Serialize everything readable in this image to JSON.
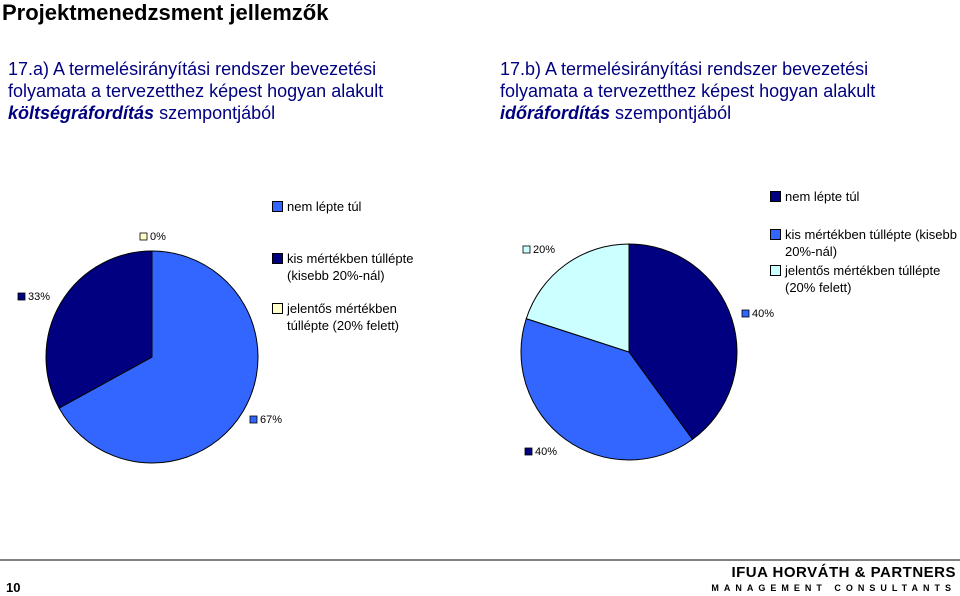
{
  "slide": {
    "title": "Projektmenedzsment jellemzők",
    "page_number": 10,
    "logo": "IFUA HORVÁTH & PARTNERS",
    "logo_subtitle": "MANAGEMENT CONSULTANTS"
  },
  "chart_data": [
    {
      "type": "pie",
      "title": [
        "17.a) A termelésirányítási rendszer bevezetési folyamata a tervezetthez képest hogyan alakult",
        "költségráfordítás",
        "szempontjából"
      ],
      "categories": [
        "nem lépte túl",
        "kis mértékben túllépte (kisebb 20%-nál)",
        "jelentős mértékben túllépte (20% felett)"
      ],
      "values": [
        67,
        33,
        0
      ],
      "value_labels": [
        "67%",
        "33%",
        "0%"
      ],
      "colors": [
        "#3366ff",
        "#000080",
        "#ffffcc"
      ]
    },
    {
      "type": "pie",
      "title": [
        "17.b) A termelésirányítási rendszer bevezetési folyamata a tervezetthez képest hogyan alakult",
        "időráfordítás",
        "szempontjából"
      ],
      "categories": [
        "nem lépte túl",
        "kis mértékben túllépte (kisebb 20%-nál)",
        "jelentős mértékben túllépte (20% felett)"
      ],
      "values": [
        40,
        40,
        20
      ],
      "value_labels": [
        "40%",
        "40%",
        "20%"
      ],
      "colors": [
        "#000080",
        "#3366ff",
        "#ccffff"
      ]
    }
  ]
}
